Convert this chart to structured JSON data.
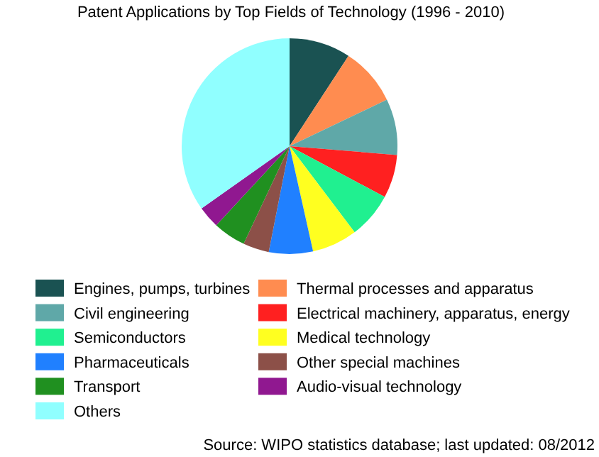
{
  "chart_data": {
    "type": "pie",
    "title": "Patent Applications by Top Fields of Technology (1996 - 2010)",
    "categories": [
      "Engines, pumps, turbines",
      "Thermal processes and apparatus",
      "Civil engineering",
      "Electrical machinery, apparatus, energy",
      "Semiconductors",
      "Medical technology",
      "Pharmaceuticals",
      "Other special machines",
      "Transport",
      "Audio-visual technology",
      "Others"
    ],
    "values": [
      9.2,
      8.7,
      8.4,
      6.5,
      6.9,
      6.8,
      6.6,
      3.9,
      4.9,
      3.3,
      34.8
    ],
    "colors": [
      "#1a5252",
      "#ff8c50",
      "#5fa8a8",
      "#ff2020",
      "#20f090",
      "#ffff20",
      "#2080ff",
      "#8c5048",
      "#209020",
      "#901890",
      "#90ffff"
    ],
    "legend": "bottom",
    "annotations": [
      "Source: WIPO statistics database; last updated: 08/2012"
    ]
  }
}
